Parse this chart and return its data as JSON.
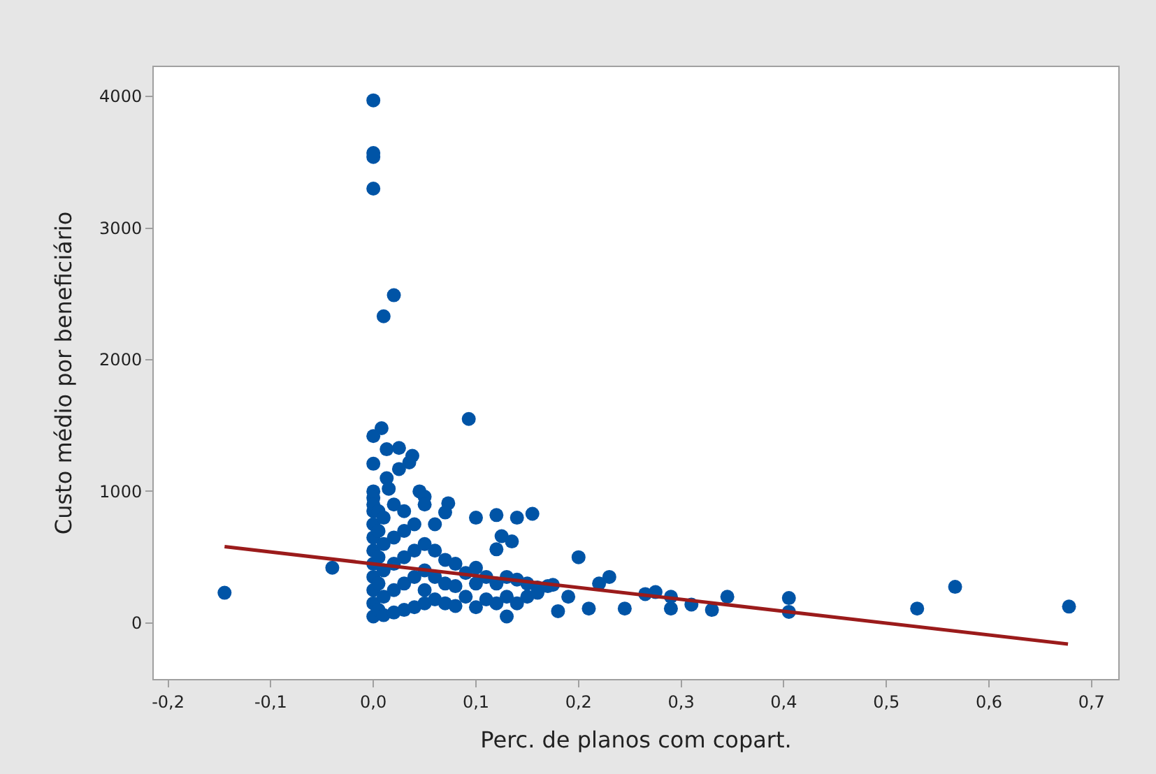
{
  "chart_data": {
    "type": "scatter",
    "xlabel": "Perc. de planos com copart.",
    "ylabel": "Custo médio por beneficiário",
    "xlim": [
      -0.214,
      0.726
    ],
    "ylim": [
      -425,
      4223
    ],
    "xticks": [
      {
        "value": -0.2,
        "label": "-0,2"
      },
      {
        "value": -0.1,
        "label": "-0,1"
      },
      {
        "value": 0.0,
        "label": "0,0"
      },
      {
        "value": 0.1,
        "label": "0,1"
      },
      {
        "value": 0.2,
        "label": "0,2"
      },
      {
        "value": 0.3,
        "label": "0,3"
      },
      {
        "value": 0.4,
        "label": "0,4"
      },
      {
        "value": 0.5,
        "label": "0,5"
      },
      {
        "value": 0.6,
        "label": "0,6"
      },
      {
        "value": 0.7,
        "label": "0,7"
      }
    ],
    "yticks": [
      0,
      1000,
      2000,
      3000,
      4000
    ],
    "series": [
      {
        "color": "#0054a6",
        "marker": "circle",
        "x": [
          0.0,
          0.0,
          0.0,
          0.0,
          0.02,
          0.01,
          0.093,
          0.008,
          0.0,
          0.013,
          0.025,
          0.038,
          0.035,
          0.0,
          0.025,
          0.013,
          -0.145,
          -0.04,
          0.0,
          0.0,
          0.05,
          0.05,
          0.073,
          0.07,
          0.1,
          0.12,
          0.155,
          0.06,
          0.14,
          0.125,
          0.2,
          0.23,
          0.22,
          0.265,
          0.275,
          0.29,
          0.29,
          0.31,
          0.33,
          0.345,
          0.405,
          0.405,
          0.53,
          0.567,
          0.678,
          0.245,
          0.21,
          0.18,
          0.175,
          0.16,
          0.13,
          0.19,
          0.0,
          0.0,
          0.0,
          0.0,
          0.0,
          0.0,
          0.0,
          0.0,
          0.0,
          0.0,
          0.005,
          0.005,
          0.005,
          0.005,
          0.005,
          0.01,
          0.01,
          0.01,
          0.01,
          0.01,
          0.02,
          0.02,
          0.02,
          0.02,
          0.02,
          0.03,
          0.03,
          0.03,
          0.03,
          0.03,
          0.04,
          0.04,
          0.04,
          0.04,
          0.05,
          0.05,
          0.05,
          0.05,
          0.06,
          0.06,
          0.06,
          0.07,
          0.07,
          0.07,
          0.08,
          0.08,
          0.08,
          0.09,
          0.09,
          0.1,
          0.1,
          0.1,
          0.11,
          0.11,
          0.12,
          0.12,
          0.13,
          0.13,
          0.14,
          0.14,
          0.15,
          0.15,
          0.16,
          0.17,
          0.12,
          0.135,
          0.015,
          0.045
        ],
        "values": [
          3970,
          3570,
          3540,
          3300,
          2490,
          2330,
          1550,
          1480,
          1420,
          1320,
          1330,
          1270,
          1220,
          1210,
          1170,
          1100,
          230,
          420,
          1000,
          950,
          960,
          900,
          910,
          840,
          800,
          820,
          830,
          750,
          800,
          660,
          500,
          350,
          300,
          220,
          235,
          200,
          110,
          140,
          100,
          200,
          190,
          85,
          110,
          275,
          125,
          110,
          110,
          90,
          290,
          270,
          50,
          200,
          50,
          150,
          250,
          350,
          450,
          550,
          650,
          750,
          850,
          900,
          100,
          300,
          500,
          700,
          850,
          60,
          200,
          400,
          600,
          800,
          80,
          250,
          450,
          650,
          900,
          100,
          300,
          500,
          700,
          850,
          120,
          350,
          550,
          750,
          150,
          250,
          400,
          600,
          180,
          350,
          550,
          150,
          300,
          480,
          130,
          280,
          450,
          200,
          380,
          120,
          300,
          420,
          180,
          350,
          150,
          300,
          200,
          350,
          150,
          330,
          200,
          300,
          230,
          280,
          560,
          620,
          1020,
          1000
        ]
      },
      {
        "type": "line",
        "color": "#9b1b1b",
        "line_style": "solid",
        "marker": "none",
        "x": [
          -0.145,
          0.677
        ],
        "values": [
          580,
          -160
        ]
      }
    ]
  }
}
